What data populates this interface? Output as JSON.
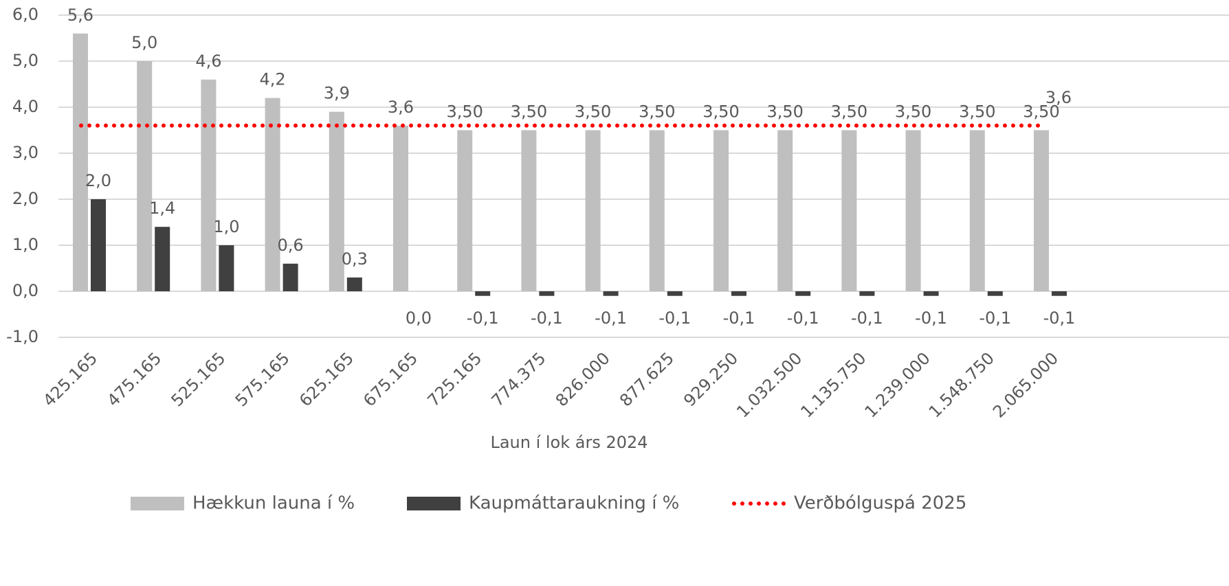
{
  "chart_data": {
    "type": "bar",
    "x_label": "Laun í lok árs 2024",
    "categories": [
      "425.165",
      "475.165",
      "525.165",
      "575.165",
      "625.165",
      "675.165",
      "725.165",
      "774.375",
      "826.000",
      "877.625",
      "929.250",
      "1.032.500",
      "1.135.750",
      "1.239.000",
      "1.548.750",
      "2.065.000"
    ],
    "series": [
      {
        "name": "Hækkun launa í %",
        "type": "bar",
        "color": "#bfbfbf",
        "values": [
          5.6,
          5.0,
          4.6,
          4.2,
          3.9,
          3.6,
          3.5,
          3.5,
          3.5,
          3.5,
          3.5,
          3.5,
          3.5,
          3.5,
          3.5,
          3.5
        ],
        "value_labels": [
          "5,6",
          "5,0",
          "4,6",
          "4,2",
          "3,9",
          "3,6",
          "3,50",
          "3,50",
          "3,50",
          "3,50",
          "3,50",
          "3,50",
          "3,50",
          "3,50",
          "3,50",
          "3,50"
        ]
      },
      {
        "name": "Kaupmáttaraukning í %",
        "type": "bar",
        "color": "#404040",
        "values": [
          2.0,
          1.4,
          1.0,
          0.6,
          0.3,
          0.0,
          -0.1,
          -0.1,
          -0.1,
          -0.1,
          -0.1,
          -0.1,
          -0.1,
          -0.1,
          -0.1,
          -0.1
        ],
        "value_labels": [
          "2,0",
          "1,4",
          "1,0",
          "0,6",
          "0,3",
          "0,0",
          "-0,1",
          "-0,1",
          "-0,1",
          "-0,1",
          "-0,1",
          "-0,1",
          "-0,1",
          "-0,1",
          "-0,1",
          "-0,1"
        ]
      },
      {
        "name": "Verðbólguspá 2025",
        "type": "line",
        "color": "#ff0000",
        "values": [
          3.6,
          3.6,
          3.6,
          3.6,
          3.6,
          3.6,
          3.6,
          3.6,
          3.6,
          3.6,
          3.6,
          3.6,
          3.6,
          3.6,
          3.6,
          3.6
        ],
        "value_labels": [
          null,
          null,
          null,
          null,
          null,
          null,
          null,
          null,
          null,
          null,
          null,
          null,
          null,
          null,
          null,
          "3,6"
        ]
      }
    ],
    "ylim": [
      -1,
      6
    ],
    "yticks": [
      {
        "value": -1,
        "label": "-1,0"
      },
      {
        "value": 0,
        "label": "0,0"
      },
      {
        "value": 1,
        "label": "1,0"
      },
      {
        "value": 2,
        "label": "2,0"
      },
      {
        "value": 3,
        "label": "3,0"
      },
      {
        "value": 4,
        "label": "4,0"
      },
      {
        "value": 5,
        "label": "5,0"
      },
      {
        "value": 6,
        "label": "6,0"
      }
    ],
    "grid": true,
    "legend": "bottom"
  }
}
